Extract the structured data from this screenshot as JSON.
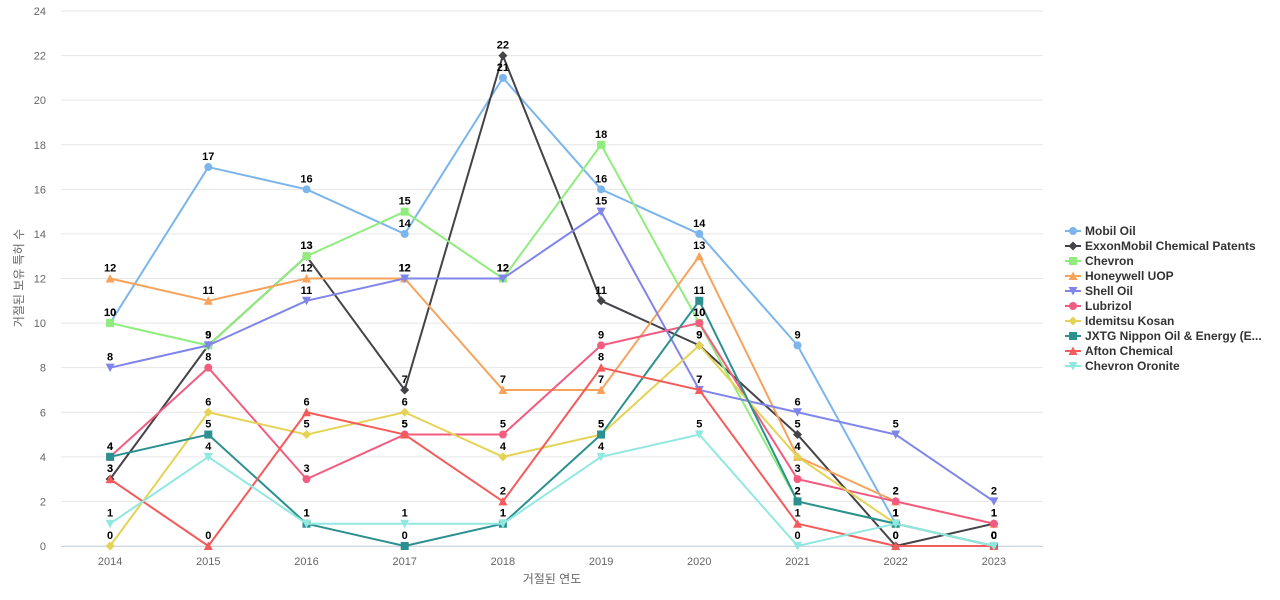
{
  "chart_data": {
    "type": "line",
    "xlabel": "거절된 연도",
    "ylabel": "거절된 보유 특허 수",
    "ylim": [
      0,
      24
    ],
    "yticks": [
      0,
      2,
      4,
      6,
      8,
      10,
      12,
      14,
      16,
      18,
      20,
      22,
      24
    ],
    "grid": true,
    "legend_position": "right",
    "categories": [
      "2014",
      "2015",
      "2016",
      "2017",
      "2018",
      "2019",
      "2020",
      "2021",
      "2022",
      "2023"
    ],
    "series": [
      {
        "name": "Mobil Oil",
        "color": "#7cb5ec",
        "marker": "circle",
        "values": [
          10,
          17,
          16,
          14,
          21,
          16,
          14,
          9,
          1,
          0
        ]
      },
      {
        "name": "ExxonMobil Chemical Patents",
        "color": "#434348",
        "marker": "diamond",
        "values": [
          3,
          9,
          13,
          7,
          22,
          11,
          9,
          5,
          0,
          1
        ]
      },
      {
        "name": "Chevron",
        "color": "#90ed7d",
        "marker": "square",
        "values": [
          10,
          9,
          13,
          15,
          12,
          18,
          10,
          2,
          1,
          0
        ]
      },
      {
        "name": "Honeywell UOP",
        "color": "#f7a35c",
        "marker": "triangle",
        "values": [
          12,
          11,
          12,
          12,
          7,
          7,
          13,
          4,
          2,
          1
        ]
      },
      {
        "name": "Shell Oil",
        "color": "#8085e9",
        "marker": "triangle-down",
        "values": [
          8,
          9,
          11,
          12,
          12,
          15,
          7,
          6,
          5,
          2
        ]
      },
      {
        "name": "Lubrizol",
        "color": "#f15c80",
        "marker": "circle",
        "values": [
          4,
          8,
          3,
          5,
          5,
          9,
          10,
          3,
          2,
          1
        ]
      },
      {
        "name": "Idemitsu Kosan",
        "color": "#e4d354",
        "marker": "diamond",
        "values": [
          0,
          6,
          5,
          6,
          4,
          5,
          9,
          4,
          1,
          0
        ]
      },
      {
        "name": "JXTG Nippon Oil & Energy (E...",
        "color": "#2b908f",
        "marker": "square",
        "values": [
          4,
          5,
          1,
          0,
          1,
          5,
          11,
          2,
          1,
          0
        ]
      },
      {
        "name": "Afton Chemical",
        "color": "#f45b5b",
        "marker": "triangle",
        "values": [
          3,
          0,
          6,
          5,
          2,
          8,
          7,
          1,
          0,
          0
        ]
      },
      {
        "name": "Chevron Oronite",
        "color": "#91e8e1",
        "marker": "triangle-down",
        "values": [
          1,
          4,
          1,
          1,
          1,
          4,
          5,
          0,
          1,
          0
        ]
      }
    ]
  }
}
